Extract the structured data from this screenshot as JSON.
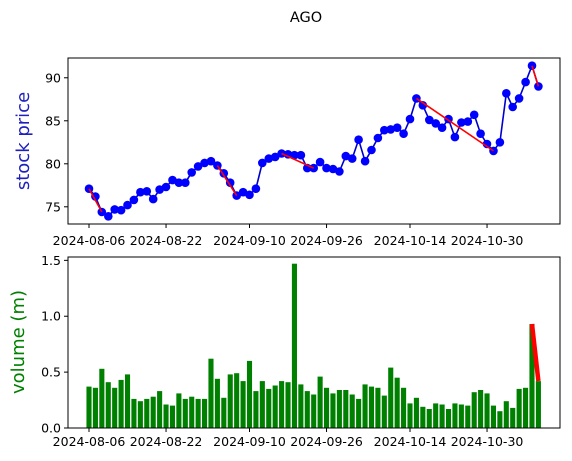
{
  "chart_data": [
    {
      "type": "line",
      "title": "AGO",
      "ylabel": "stock price",
      "ylabel_color": "#1f1fbf",
      "xlabel": "",
      "ylim": [
        73,
        92.3
      ],
      "yticks": [
        75,
        80,
        85,
        90
      ],
      "xticks": [
        "2024-08-06",
        "2024-08-22",
        "2024-09-10",
        "2024-09-26",
        "2024-10-14",
        "2024-10-30"
      ],
      "xtick_index": [
        0,
        12,
        25,
        37,
        50,
        62
      ],
      "grid": false,
      "series": [
        {
          "marker_color": "#0000ff",
          "line_color": "#0000cc",
          "values": [
            77.1,
            76.2,
            74.4,
            73.9,
            74.7,
            74.6,
            75.2,
            75.8,
            76.7,
            76.8,
            75.9,
            77.0,
            77.3,
            78.1,
            77.8,
            77.8,
            79.0,
            79.7,
            80.1,
            80.3,
            79.8,
            78.9,
            77.8,
            76.3,
            76.7,
            76.4,
            77.1,
            80.1,
            80.6,
            80.8,
            81.2,
            81.1,
            81.0,
            81.0,
            79.5,
            79.5,
            80.2,
            79.5,
            79.4,
            79.1,
            80.9,
            80.6,
            82.8,
            80.3,
            81.6,
            83.0,
            83.9,
            84.0,
            84.2,
            83.5,
            85.2,
            87.6,
            86.8,
            85.1,
            84.7,
            84.2,
            85.2,
            83.1,
            84.8,
            84.9,
            85.7,
            83.5,
            82.3,
            81.5,
            82.5,
            88.2,
            86.6,
            87.6,
            89.5,
            91.4,
            89.0
          ]
        }
      ],
      "trend_segments": [
        {
          "from": 0,
          "to": 2
        },
        {
          "from": 20,
          "to": 23
        },
        {
          "from": 30,
          "to": 35
        },
        {
          "from": 51,
          "to": 63
        },
        {
          "from": 69,
          "to": 70
        }
      ],
      "trend_color": "#ff0000"
    },
    {
      "type": "bar",
      "ylabel": "volume (m)",
      "ylabel_color": "#008000",
      "xlabel": "",
      "ylim": [
        0,
        1.53
      ],
      "yticks": [
        "0.0",
        "0.5",
        "1.0",
        "1.5"
      ],
      "xticks": [
        "2024-08-06",
        "2024-08-22",
        "2024-09-10",
        "2024-09-26",
        "2024-10-14",
        "2024-10-30"
      ],
      "xtick_index": [
        0,
        12,
        25,
        37,
        50,
        62
      ],
      "grid": false,
      "bar_color": "#008000",
      "values": [
        0.37,
        0.36,
        0.53,
        0.41,
        0.36,
        0.43,
        0.48,
        0.26,
        0.24,
        0.26,
        0.28,
        0.33,
        0.21,
        0.2,
        0.31,
        0.26,
        0.28,
        0.26,
        0.26,
        0.62,
        0.44,
        0.27,
        0.48,
        0.49,
        0.42,
        0.6,
        0.33,
        0.42,
        0.35,
        0.38,
        0.42,
        0.41,
        1.47,
        0.39,
        0.33,
        0.3,
        0.46,
        0.36,
        0.31,
        0.34,
        0.34,
        0.3,
        0.26,
        0.39,
        0.37,
        0.36,
        0.29,
        0.54,
        0.45,
        0.36,
        0.22,
        0.27,
        0.19,
        0.17,
        0.22,
        0.21,
        0.17,
        0.22,
        0.21,
        0.2,
        0.32,
        0.34,
        0.31,
        0.2,
        0.15,
        0.24,
        0.18,
        0.35,
        0.36,
        0.93,
        0.42
      ],
      "trend_segments": [
        {
          "from": 69,
          "to": 70
        }
      ],
      "trend_color": "#ff0000"
    }
  ]
}
